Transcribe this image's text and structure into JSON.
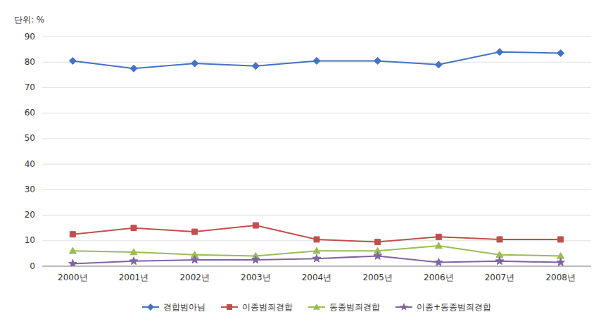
{
  "chart_data": {
    "type": "line",
    "ylabel": "단위: %",
    "categories": [
      "2000년",
      "2001년",
      "2002년",
      "2003년",
      "2004년",
      "2005년",
      "2006년",
      "2007년",
      "2008년"
    ],
    "series": [
      {
        "name": "경합범아님",
        "color": "#4472C4",
        "marker": "diamond",
        "values": [
          80.5,
          77.5,
          79.5,
          78.5,
          80.5,
          80.5,
          79.0,
          84.0,
          83.5
        ]
      },
      {
        "name": "이종범죄경합",
        "color": "#C0504D",
        "marker": "square",
        "values": [
          12.5,
          15.0,
          13.5,
          16.0,
          10.5,
          9.5,
          11.5,
          10.5,
          10.5
        ]
      },
      {
        "name": "동종범죄경합",
        "color": "#9BBB59",
        "marker": "triangle",
        "values": [
          6.0,
          5.5,
          4.5,
          4.0,
          6.0,
          6.0,
          8.0,
          4.5,
          4.0
        ]
      },
      {
        "name": "이종+동종범죄경합",
        "color": "#8064A2",
        "marker": "star",
        "values": [
          1.0,
          2.0,
          2.5,
          2.5,
          3.0,
          4.0,
          1.5,
          2.0,
          1.5
        ]
      }
    ],
    "ylim": [
      0,
      90
    ],
    "yticks": [
      0,
      10,
      20,
      30,
      40,
      50,
      60,
      70,
      80,
      90
    ],
    "grid": true,
    "legend": "bottom"
  }
}
